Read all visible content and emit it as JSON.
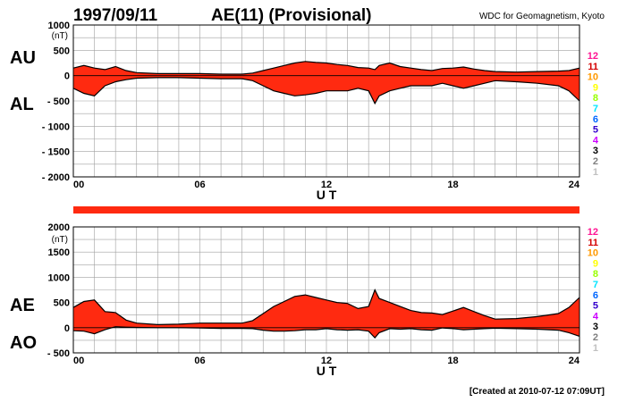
{
  "header": {
    "date": "1997/09/11",
    "title": "AE(11) (Provisional)",
    "source": "WDC for Geomagnetism, Kyoto"
  },
  "footer": {
    "created": "[Created at 2010-07-12 07:09UT]"
  },
  "legend_numbers": [
    "12",
    "11",
    "10",
    "9",
    "8",
    "7",
    "6",
    "5",
    "4",
    "3",
    "2",
    "1"
  ],
  "colors": {
    "fill": "#ff2a10",
    "line": "#000000",
    "grid": "#a0a0a0",
    "legend": [
      "#ff1493",
      "#d40000",
      "#ff9900",
      "#ffff00",
      "#99ff00",
      "#00e5ff",
      "#0066ff",
      "#3300cc",
      "#cc00ff",
      "#000000",
      "#808080",
      "#c0c0c0"
    ]
  },
  "chart_data": [
    {
      "type": "area",
      "panel": "top",
      "series_labels": [
        "AU",
        "AL"
      ],
      "unit_label": "(nT)",
      "xlabel": "U T",
      "xlim": [
        0,
        24
      ],
      "x_ticks": [
        "00",
        "06",
        "12",
        "18",
        "24"
      ],
      "ylim": [
        -2000,
        1000
      ],
      "y_ticks": [
        "1000",
        "500",
        "0",
        "- 500",
        "- 1000",
        "- 1500",
        "- 2000"
      ],
      "x": [
        0,
        0.5,
        1,
        1.5,
        2,
        2.5,
        3,
        4,
        5,
        6,
        7,
        8,
        8.5,
        9,
        9.5,
        10,
        10.5,
        11,
        11.5,
        12,
        12.5,
        13,
        13.5,
        14,
        14.3,
        14.5,
        15,
        15.5,
        16,
        16.5,
        17,
        17.5,
        18,
        18.5,
        19,
        19.5,
        20,
        21,
        22,
        23,
        23.5,
        24
      ],
      "series": [
        {
          "name": "AU",
          "values": [
            150,
            200,
            150,
            120,
            180,
            100,
            60,
            40,
            40,
            40,
            30,
            30,
            50,
            100,
            150,
            200,
            250,
            280,
            260,
            250,
            220,
            200,
            160,
            150,
            120,
            200,
            250,
            180,
            150,
            120,
            100,
            140,
            150,
            170,
            130,
            100,
            80,
            70,
            80,
            90,
            100,
            150
          ]
        },
        {
          "name": "AL",
          "values": [
            -250,
            -350,
            -400,
            -200,
            -120,
            -80,
            -50,
            -40,
            -40,
            -50,
            -60,
            -60,
            -100,
            -200,
            -300,
            -350,
            -400,
            -380,
            -350,
            -300,
            -300,
            -300,
            -250,
            -300,
            -550,
            -400,
            -300,
            -250,
            -200,
            -200,
            -200,
            -150,
            -200,
            -250,
            -200,
            -150,
            -100,
            -120,
            -150,
            -200,
            -300,
            -500
          ]
        }
      ]
    },
    {
      "type": "area",
      "panel": "bottom",
      "series_labels": [
        "AE",
        "AO"
      ],
      "unit_label": "(nT)",
      "xlabel": "U T",
      "xlim": [
        0,
        24
      ],
      "x_ticks": [
        "00",
        "06",
        "12",
        "18",
        "24"
      ],
      "ylim": [
        -500,
        2000
      ],
      "y_ticks": [
        "2000",
        "1500",
        "1000",
        "500",
        "0",
        "- 500"
      ],
      "x": [
        0,
        0.5,
        1,
        1.5,
        2,
        2.5,
        3,
        4,
        5,
        6,
        7,
        8,
        8.5,
        9,
        9.5,
        10,
        10.5,
        11,
        11.5,
        12,
        12.5,
        13,
        13.5,
        14,
        14.3,
        14.5,
        15,
        15.5,
        16,
        16.5,
        17,
        17.5,
        18,
        18.5,
        19,
        19.5,
        20,
        21,
        22,
        23,
        23.5,
        24
      ],
      "series": [
        {
          "name": "AE",
          "values": [
            400,
            520,
            550,
            320,
            300,
            150,
            90,
            60,
            70,
            90,
            90,
            90,
            140,
            280,
            420,
            520,
            620,
            650,
            600,
            550,
            500,
            480,
            380,
            420,
            750,
            580,
            500,
            420,
            340,
            300,
            290,
            260,
            330,
            400,
            320,
            240,
            170,
            180,
            220,
            280,
            400,
            600
          ]
        },
        {
          "name": "AO",
          "values": [
            -60,
            -70,
            -120,
            -40,
            20,
            10,
            5,
            0,
            0,
            -5,
            -15,
            -15,
            -20,
            -50,
            -70,
            -70,
            -60,
            -40,
            -40,
            -20,
            -40,
            -50,
            -40,
            -70,
            -200,
            -100,
            -20,
            -30,
            -20,
            -40,
            -50,
            -5,
            -20,
            -40,
            -30,
            -20,
            -10,
            -20,
            -30,
            -50,
            -100,
            -170
          ]
        }
      ]
    }
  ]
}
